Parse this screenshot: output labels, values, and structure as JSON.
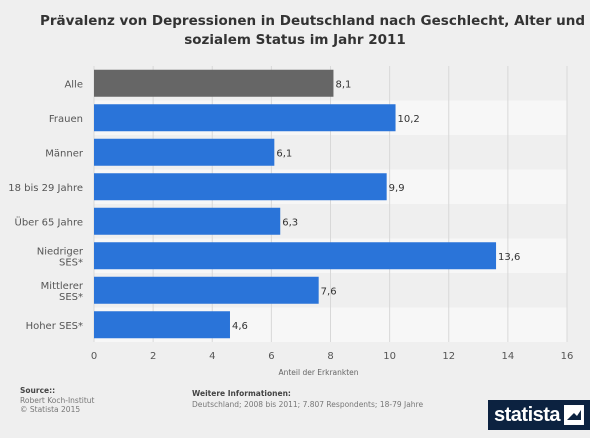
{
  "title_lines": [
    "Prävalenz von Depressionen in Deutschland nach Geschlecht, Alter und",
    "sozialem Status im Jahr 2011"
  ],
  "source": {
    "heading": "Source::",
    "lines": [
      "Robert Koch-Institut",
      "© Statista 2015"
    ]
  },
  "info": {
    "heading": "Weitere Informationen:",
    "text": "Deutschland; 2008 bis 2011; 7.807 Respondents; 18-79 Jahre"
  },
  "logo": {
    "text": "statista"
  },
  "colors": {
    "highlight_bar": "#666666",
    "bar": "#2a74d9",
    "stripe": "#f7f7f7",
    "background": "#efefef",
    "grid": "#d8d8d8",
    "logo_bg": "#0c2240"
  },
  "chart_data": {
    "type": "bar",
    "orientation": "horizontal",
    "categories": [
      [
        "Alle"
      ],
      [
        "Frauen"
      ],
      [
        "Männer"
      ],
      [
        "18 bis 29 Jahre"
      ],
      [
        "Über 65 Jahre"
      ],
      [
        "Niedriger",
        "SES*"
      ],
      [
        "Mittlerer",
        "SES*"
      ],
      [
        "Hoher SES*"
      ]
    ],
    "values": [
      8.1,
      10.2,
      6.1,
      9.9,
      6.3,
      13.6,
      7.6,
      4.6
    ],
    "value_labels": [
      "8,1",
      "10,2",
      "6,1",
      "9,9",
      "6,3",
      "13,6",
      "7,6",
      "4,6"
    ],
    "highlight_index": 0,
    "xlabel": "Anteil der Erkrankten",
    "xlim": [
      0,
      16
    ],
    "xticks": [
      0,
      2,
      4,
      6,
      8,
      10,
      12,
      14,
      16
    ],
    "grid": "vertical"
  }
}
